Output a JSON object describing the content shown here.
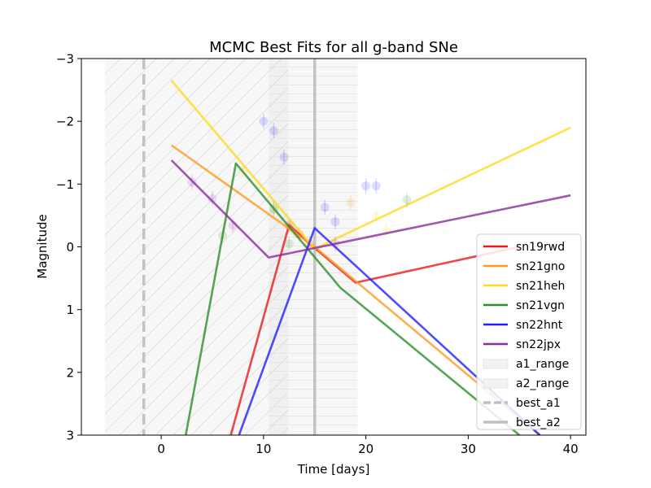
{
  "chart_data": {
    "type": "line",
    "title": "MCMC Best Fits for all g-band SNe",
    "xlabel": "Time [days]",
    "ylabel": "Magnitude",
    "xlim": [
      -7.8,
      41.5
    ],
    "ylim": [
      3,
      -3
    ],
    "y_inverted": true,
    "x_ticks": [
      0,
      10,
      20,
      30,
      40
    ],
    "y_ticks": [
      -3,
      -2,
      -1,
      0,
      1,
      2,
      3
    ],
    "y_tick_labels": [
      "−3",
      "−2",
      "−1",
      "0",
      "1",
      "2",
      "3"
    ],
    "legend_position": "lower right",
    "series": [
      {
        "name": "sn19rwd",
        "color": "#e8191b",
        "line": [
          [
            6.8,
            3.0
          ],
          [
            12.5,
            -0.35
          ],
          [
            14.5,
            -0.05
          ],
          [
            19,
            0.57
          ],
          [
            35,
            0.0
          ]
        ],
        "points": [
          [
            12.5,
            -0.35
          ],
          [
            13.5,
            -0.2
          ],
          [
            14.5,
            -0.05
          ]
        ]
      },
      {
        "name": "sn21gno",
        "color": "#ff9a1f",
        "line": [
          [
            1,
            -1.62
          ],
          [
            15,
            0.0
          ],
          [
            37,
            3.0
          ]
        ],
        "points": [
          [
            12.5,
            -0.33
          ],
          [
            13,
            -0.25
          ],
          [
            18.5,
            -0.7
          ]
        ]
      },
      {
        "name": "sn21heh",
        "color": "#ffd91f",
        "line": [
          [
            1,
            -2.65
          ],
          [
            15,
            0.03
          ],
          [
            40,
            -1.9
          ]
        ],
        "points": [
          [
            8,
            -1.22
          ],
          [
            11,
            -0.62
          ],
          [
            21,
            -0.48
          ],
          [
            22,
            -0.25
          ]
        ]
      },
      {
        "name": "sn21vgn",
        "color": "#2a8f2a",
        "line": [
          [
            2.4,
            3.0
          ],
          [
            7.3,
            -1.33
          ],
          [
            17.5,
            0.65
          ],
          [
            35,
            3.0
          ]
        ],
        "points": [
          [
            6,
            -0.18
          ],
          [
            11,
            -0.6
          ],
          [
            12.5,
            -0.05
          ],
          [
            24,
            -0.75
          ]
        ]
      },
      {
        "name": "sn22hnt",
        "color": "#2020ff",
        "line": [
          [
            7.6,
            3.0
          ],
          [
            15,
            -0.3
          ],
          [
            37,
            3.0
          ]
        ],
        "points": [
          [
            10,
            -2.0
          ],
          [
            11,
            -1.85
          ],
          [
            12,
            -1.43
          ],
          [
            16,
            -0.63
          ],
          [
            17,
            -0.4
          ],
          [
            20,
            -0.97
          ],
          [
            21,
            -0.97
          ]
        ]
      },
      {
        "name": "sn22jpx",
        "color": "#8b2c9e",
        "line": [
          [
            1,
            -1.38
          ],
          [
            10.5,
            0.17
          ],
          [
            40,
            -0.82
          ]
        ],
        "points": [
          [
            3,
            -1.03
          ],
          [
            5,
            -0.77
          ],
          [
            7,
            -0.34
          ],
          [
            17,
            -0.05
          ]
        ]
      }
    ],
    "ranges": [
      {
        "name": "a1_range",
        "x": [
          -5.5,
          12.4
        ]
      },
      {
        "name": "a2_range",
        "x": [
          10.5,
          19.2
        ]
      }
    ],
    "vlines": [
      {
        "name": "best_a1",
        "x": -1.7,
        "style": "dashed"
      },
      {
        "name": "best_a2",
        "x": 15,
        "style": "solid"
      }
    ]
  },
  "legend": [
    {
      "label": "sn19rwd",
      "kind": "line",
      "color": "#e8191b"
    },
    {
      "label": "sn21gno",
      "kind": "line",
      "color": "#ff9a1f"
    },
    {
      "label": "sn21heh",
      "kind": "line",
      "color": "#ffd91f"
    },
    {
      "label": "sn21vgn",
      "kind": "line",
      "color": "#2a8f2a"
    },
    {
      "label": "sn22hnt",
      "kind": "line",
      "color": "#2020ff"
    },
    {
      "label": "sn22jpx",
      "kind": "line",
      "color": "#8b2c9e"
    },
    {
      "label": "a1_range",
      "kind": "patch",
      "color": "#e8e8e8"
    },
    {
      "label": "a2_range",
      "kind": "patch",
      "color": "#e8e8e8"
    },
    {
      "label": "best_a1",
      "kind": "dashed",
      "color": "#c0c0c0"
    },
    {
      "label": "best_a2",
      "kind": "solid",
      "color": "#c0c0c0"
    }
  ]
}
